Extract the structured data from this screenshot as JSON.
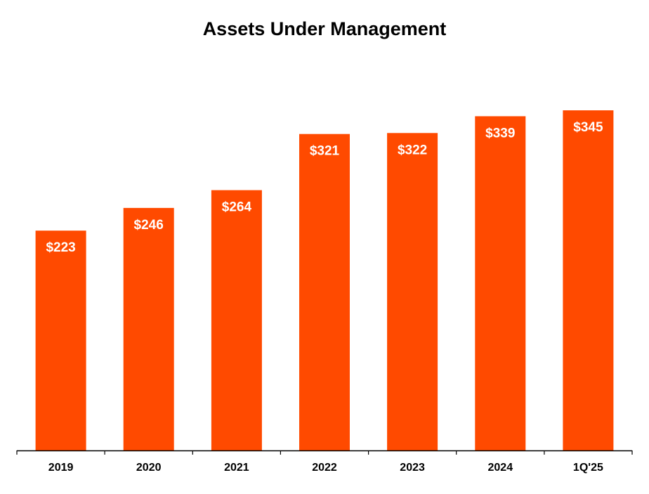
{
  "chart_data": {
    "type": "bar",
    "title": "Assets Under Management",
    "xlabel": "",
    "ylabel": "",
    "categories": [
      "2019",
      "2020",
      "2021",
      "2022",
      "2023",
      "2024",
      "1Q'25"
    ],
    "values": [
      223,
      246,
      264,
      321,
      322,
      339,
      345
    ],
    "data_labels": [
      "$223",
      "$246",
      "$264",
      "$321",
      "$322",
      "$339",
      "$345"
    ],
    "ylim": [
      0,
      345
    ],
    "grid": false,
    "legend": "none",
    "bar_color": "#FF4A00"
  }
}
